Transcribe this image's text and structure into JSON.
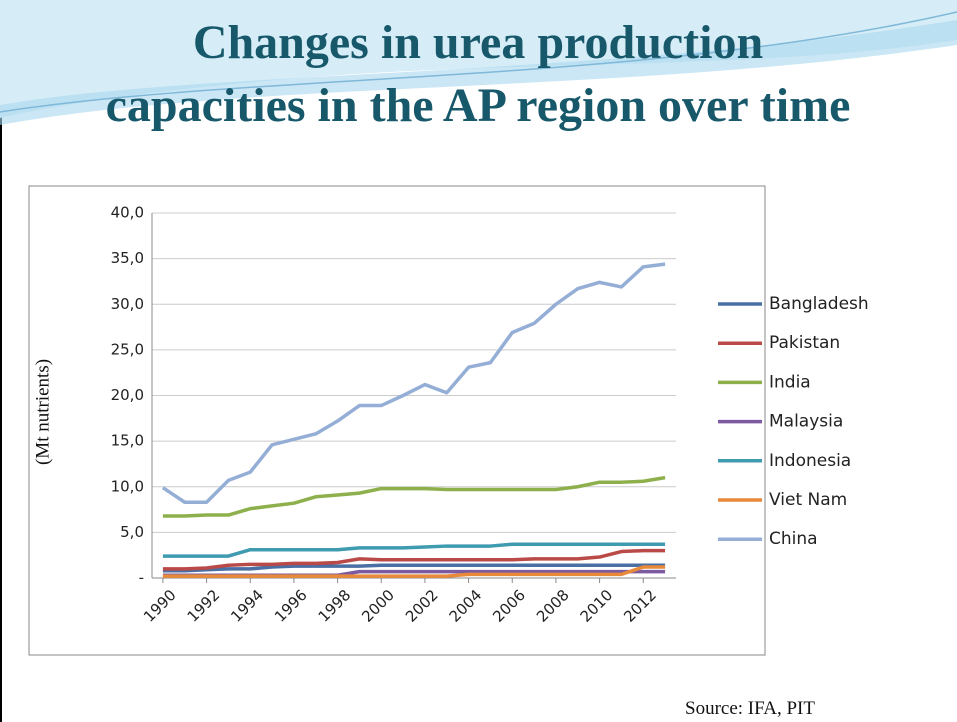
{
  "chart_data": {
    "type": "line",
    "title": [
      "Changes in urea production",
      "capacities in the AP region over time"
    ],
    "ylabel": "(Mt nutrients)",
    "source": "Source: IFA, PIT",
    "x": [
      1990,
      1991,
      1992,
      1993,
      1994,
      1995,
      1996,
      1997,
      1998,
      1999,
      2000,
      2001,
      2002,
      2003,
      2004,
      2005,
      2006,
      2007,
      2008,
      2009,
      2010,
      2011,
      2012,
      2013
    ],
    "xlim": [
      1989.5,
      2013.5
    ],
    "xticks": [
      1990,
      1992,
      1994,
      1996,
      1998,
      2000,
      2002,
      2004,
      2006,
      2008,
      2010,
      2012
    ],
    "ylim": [
      0,
      40
    ],
    "yticks": [
      {
        "value": 0,
        "label": "-"
      },
      {
        "value": 5,
        "label": "5,0"
      },
      {
        "value": 10,
        "label": "10,0"
      },
      {
        "value": 15,
        "label": "15,0"
      },
      {
        "value": 20,
        "label": "20,0"
      },
      {
        "value": 25,
        "label": "25,0"
      },
      {
        "value": 30,
        "label": "30,0"
      },
      {
        "value": 35,
        "label": "35,0"
      },
      {
        "value": 40,
        "label": "40,0"
      }
    ],
    "grid": true,
    "legend": "right",
    "series": [
      {
        "name": "Bangladesh",
        "color": "#4a6fa5",
        "values": [
          0.8,
          0.8,
          0.9,
          1.0,
          1.0,
          1.2,
          1.3,
          1.3,
          1.3,
          1.3,
          1.4,
          1.4,
          1.4,
          1.4,
          1.4,
          1.4,
          1.4,
          1.4,
          1.4,
          1.4,
          1.4,
          1.4,
          1.4,
          1.4
        ]
      },
      {
        "name": "Pakistan",
        "color": "#b94a48",
        "values": [
          1.0,
          1.0,
          1.1,
          1.4,
          1.5,
          1.5,
          1.6,
          1.6,
          1.7,
          2.1,
          2.0,
          2.0,
          2.0,
          2.0,
          2.0,
          2.0,
          2.0,
          2.1,
          2.1,
          2.1,
          2.3,
          2.9,
          3.0,
          3.0
        ]
      },
      {
        "name": "India",
        "color": "#8db04d",
        "values": [
          6.8,
          6.8,
          6.9,
          6.9,
          7.6,
          7.9,
          8.2,
          8.9,
          9.1,
          9.3,
          9.8,
          9.8,
          9.8,
          9.7,
          9.7,
          9.7,
          9.7,
          9.7,
          9.7,
          10.0,
          10.5,
          10.5,
          10.6,
          11.0
        ]
      },
      {
        "name": "Malaysia",
        "color": "#7b5aa0",
        "values": [
          0.3,
          0.3,
          0.3,
          0.3,
          0.3,
          0.3,
          0.3,
          0.3,
          0.3,
          0.7,
          0.7,
          0.7,
          0.7,
          0.7,
          0.7,
          0.7,
          0.7,
          0.7,
          0.7,
          0.7,
          0.7,
          0.7,
          0.7,
          0.7
        ]
      },
      {
        "name": "Indonesia",
        "color": "#3f9bb0",
        "values": [
          2.4,
          2.4,
          2.4,
          2.4,
          3.1,
          3.1,
          3.1,
          3.1,
          3.1,
          3.3,
          3.3,
          3.3,
          3.4,
          3.5,
          3.5,
          3.5,
          3.7,
          3.7,
          3.7,
          3.7,
          3.7,
          3.7,
          3.7,
          3.7
        ]
      },
      {
        "name": "Viet Nam",
        "color": "#e88a3a",
        "values": [
          0.2,
          0.2,
          0.2,
          0.2,
          0.2,
          0.2,
          0.2,
          0.2,
          0.2,
          0.2,
          0.2,
          0.2,
          0.2,
          0.2,
          0.4,
          0.4,
          0.4,
          0.4,
          0.4,
          0.4,
          0.4,
          0.4,
          1.2,
          1.2
        ]
      },
      {
        "name": "China",
        "color": "#94aed6",
        "values": [
          9.9,
          8.3,
          8.3,
          10.7,
          11.6,
          14.6,
          15.2,
          15.8,
          17.2,
          18.9,
          18.9,
          20.0,
          21.2,
          20.3,
          23.1,
          23.6,
          26.9,
          27.9,
          30.0,
          31.7,
          32.4,
          31.9,
          34.1,
          34.4
        ]
      }
    ]
  }
}
